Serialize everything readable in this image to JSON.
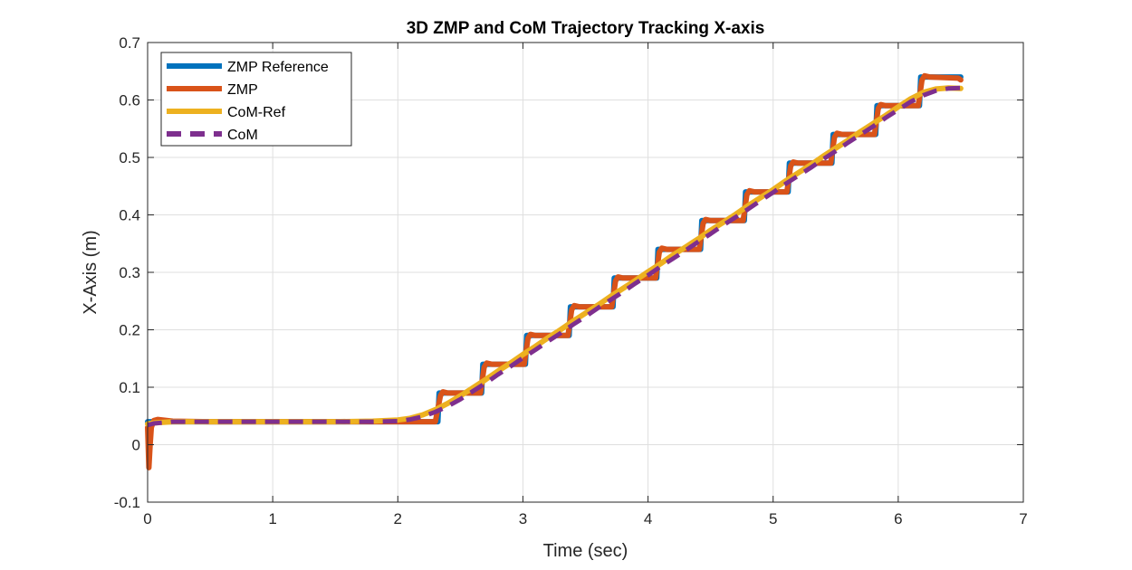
{
  "chart_data": {
    "type": "line",
    "title": "3D ZMP and CoM Trajectory Tracking X-axis",
    "xlabel": "Time (sec)",
    "ylabel": "X-Axis (m)",
    "xlim": [
      0,
      7
    ],
    "ylim": [
      -0.1,
      0.7
    ],
    "xticks": [
      0,
      1,
      2,
      3,
      4,
      5,
      6,
      7
    ],
    "yticks": [
      -0.1,
      0,
      0.1,
      0.2,
      0.3,
      0.4,
      0.5,
      0.6,
      0.7
    ],
    "grid": true,
    "legend_position": "top-left",
    "series": [
      {
        "name": "ZMP Reference",
        "color": "#0072BD",
        "style": "solid",
        "x": [
          0,
          2.32,
          2.33,
          2.67,
          2.68,
          3.02,
          3.03,
          3.37,
          3.38,
          3.72,
          3.73,
          4.07,
          4.08,
          4.42,
          4.43,
          4.77,
          4.78,
          5.12,
          5.13,
          5.47,
          5.48,
          5.82,
          5.83,
          6.17,
          6.18,
          6.5
        ],
        "y": [
          0.04,
          0.04,
          0.09,
          0.09,
          0.14,
          0.14,
          0.19,
          0.19,
          0.24,
          0.24,
          0.29,
          0.29,
          0.34,
          0.34,
          0.39,
          0.39,
          0.44,
          0.44,
          0.49,
          0.49,
          0.54,
          0.54,
          0.59,
          0.59,
          0.64,
          0.64
        ]
      },
      {
        "name": "ZMP",
        "color": "#D95319",
        "style": "solid",
        "x": [
          0,
          0.01,
          0.02,
          0.03,
          0.05,
          0.08,
          0.12,
          0.2,
          0.5,
          1.0,
          1.5,
          2.0,
          2.3,
          2.34,
          2.36,
          2.4,
          2.66,
          2.69,
          2.71,
          2.75,
          3.01,
          3.04,
          3.06,
          3.1,
          3.36,
          3.39,
          3.41,
          3.45,
          3.71,
          3.74,
          3.76,
          3.8,
          4.06,
          4.09,
          4.11,
          4.15,
          4.41,
          4.44,
          4.46,
          4.5,
          4.76,
          4.79,
          4.81,
          4.85,
          5.11,
          5.14,
          5.16,
          5.2,
          5.46,
          5.49,
          5.51,
          5.55,
          5.81,
          5.84,
          5.86,
          5.9,
          6.16,
          6.19,
          6.21,
          6.25,
          6.48,
          6.5
        ],
        "y": [
          0.03,
          -0.04,
          0.0,
          0.03,
          0.042,
          0.044,
          0.043,
          0.041,
          0.04,
          0.04,
          0.04,
          0.04,
          0.04,
          0.085,
          0.092,
          0.09,
          0.09,
          0.135,
          0.142,
          0.14,
          0.14,
          0.185,
          0.192,
          0.19,
          0.19,
          0.235,
          0.242,
          0.24,
          0.24,
          0.285,
          0.292,
          0.29,
          0.29,
          0.335,
          0.342,
          0.34,
          0.34,
          0.385,
          0.392,
          0.39,
          0.39,
          0.435,
          0.442,
          0.44,
          0.44,
          0.485,
          0.492,
          0.49,
          0.49,
          0.535,
          0.542,
          0.54,
          0.54,
          0.585,
          0.592,
          0.59,
          0.59,
          0.635,
          0.642,
          0.64,
          0.638,
          0.635
        ]
      },
      {
        "name": "CoM-Ref",
        "color": "#EDB120",
        "style": "solid",
        "x": [
          0,
          0.05,
          0.2,
          0.5,
          1.0,
          1.5,
          1.8,
          2.0,
          2.1,
          2.2,
          2.3,
          2.4,
          2.5,
          2.6,
          2.7,
          2.8,
          2.9,
          3.0,
          3.1,
          3.2,
          3.3,
          3.4,
          3.5,
          3.6,
          3.7,
          3.8,
          3.9,
          4.0,
          4.1,
          4.2,
          4.3,
          4.4,
          4.5,
          4.6,
          4.7,
          4.8,
          4.9,
          5.0,
          5.1,
          5.2,
          5.3,
          5.4,
          5.5,
          5.6,
          5.7,
          5.8,
          5.9,
          6.0,
          6.1,
          6.2,
          6.3,
          6.4,
          6.5
        ],
        "y": [
          0.036,
          0.038,
          0.04,
          0.04,
          0.04,
          0.04,
          0.041,
          0.043,
          0.046,
          0.052,
          0.061,
          0.072,
          0.085,
          0.099,
          0.113,
          0.128,
          0.142,
          0.157,
          0.171,
          0.186,
          0.2,
          0.215,
          0.229,
          0.243,
          0.258,
          0.272,
          0.286,
          0.301,
          0.315,
          0.33,
          0.344,
          0.358,
          0.373,
          0.387,
          0.401,
          0.416,
          0.43,
          0.444,
          0.459,
          0.473,
          0.487,
          0.502,
          0.516,
          0.53,
          0.545,
          0.559,
          0.573,
          0.588,
          0.602,
          0.613,
          0.619,
          0.621,
          0.62
        ]
      },
      {
        "name": "CoM",
        "color": "#7E2F8E",
        "style": "dashed",
        "x": [
          0,
          0.05,
          0.2,
          0.5,
          1.0,
          1.5,
          1.8,
          2.0,
          2.1,
          2.2,
          2.3,
          2.4,
          2.5,
          2.6,
          2.7,
          2.8,
          2.9,
          3.0,
          3.1,
          3.2,
          3.3,
          3.4,
          3.5,
          3.6,
          3.7,
          3.8,
          3.9,
          4.0,
          4.1,
          4.2,
          4.3,
          4.4,
          4.5,
          4.6,
          4.7,
          4.8,
          4.9,
          5.0,
          5.1,
          5.2,
          5.3,
          5.4,
          5.5,
          5.6,
          5.7,
          5.8,
          5.9,
          6.0,
          6.1,
          6.2,
          6.3,
          6.4,
          6.5
        ],
        "y": [
          0.034,
          0.037,
          0.04,
          0.04,
          0.04,
          0.04,
          0.04,
          0.041,
          0.044,
          0.049,
          0.057,
          0.067,
          0.079,
          0.093,
          0.107,
          0.122,
          0.136,
          0.151,
          0.165,
          0.18,
          0.194,
          0.209,
          0.223,
          0.238,
          0.252,
          0.266,
          0.281,
          0.295,
          0.31,
          0.324,
          0.338,
          0.353,
          0.367,
          0.382,
          0.396,
          0.41,
          0.425,
          0.439,
          0.454,
          0.468,
          0.482,
          0.497,
          0.511,
          0.526,
          0.54,
          0.554,
          0.569,
          0.583,
          0.597,
          0.608,
          0.616,
          0.62,
          0.621
        ]
      }
    ]
  }
}
